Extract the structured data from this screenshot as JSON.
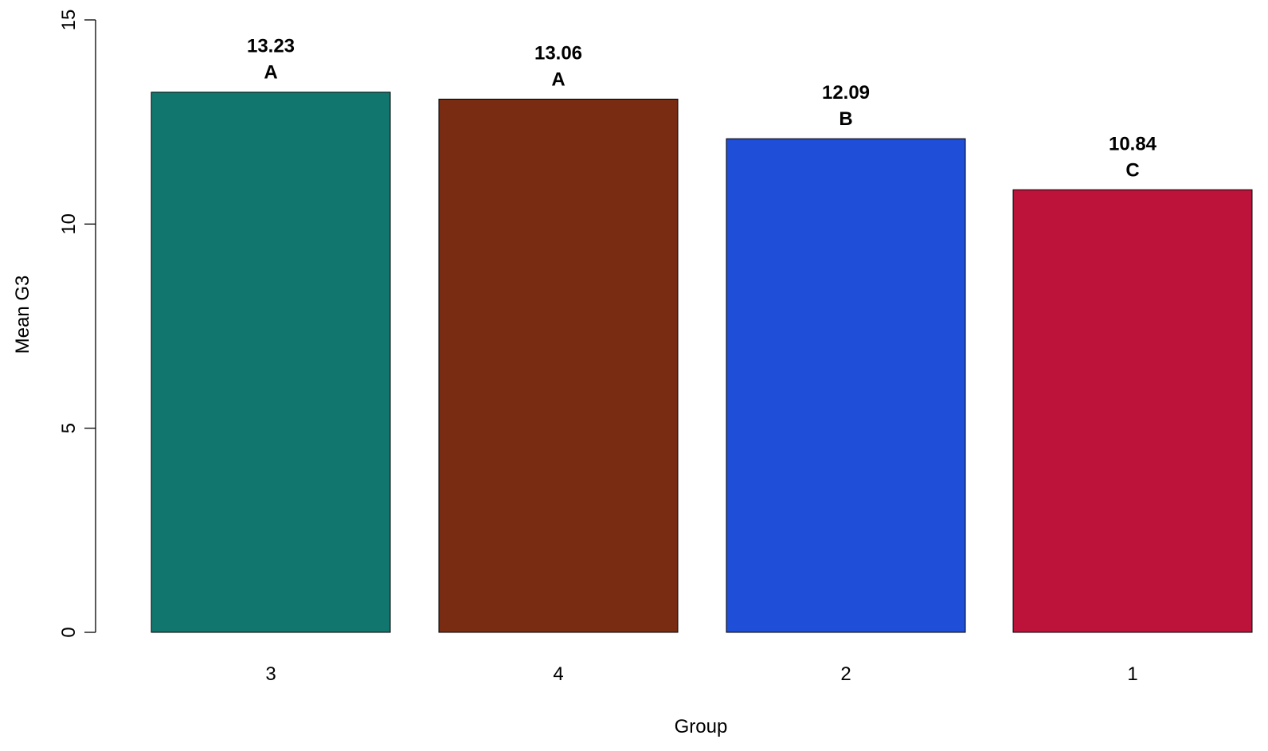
{
  "chart_data": {
    "type": "bar",
    "categories": [
      "3",
      "4",
      "2",
      "1"
    ],
    "values": [
      13.23,
      13.06,
      12.09,
      10.84
    ],
    "value_labels": [
      "13.23",
      "13.06",
      "12.09",
      "10.84"
    ],
    "group_letters": [
      "A",
      "A",
      "B",
      "C"
    ],
    "colors": [
      "#10766E",
      "#7A2C12",
      "#1F4FD8",
      "#BD133B"
    ],
    "title": "",
    "xlabel": "Group",
    "ylabel": "Mean G3",
    "ylim": [
      0,
      15
    ],
    "yticks": [
      "0",
      "5",
      "10",
      "15"
    ],
    "grid": false,
    "legend": "none"
  }
}
